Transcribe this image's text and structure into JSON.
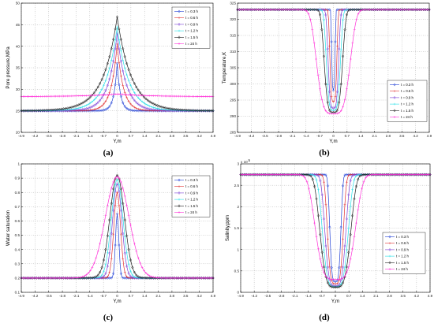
{
  "figure": {
    "captions": [
      "(a)",
      "(b)",
      "(c)",
      "(d)"
    ]
  },
  "chart_data": [
    {
      "type": "line",
      "panel": "a",
      "title": "",
      "xlabel": "Y,m",
      "ylabel": "Pore pressure,MPa",
      "xlim": [
        -4.9,
        4.9
      ],
      "ylim": [
        20,
        50
      ],
      "xticks": [
        "-4.9",
        "-4.2",
        "-3.5",
        "-2.8",
        "-2.1",
        "-1.4",
        "-0.7",
        "0",
        "0.7",
        "1.4",
        "2.1",
        "2.8",
        "3.5",
        "4.2",
        "4.9"
      ],
      "yticks": [
        "20",
        "25",
        "30",
        "35",
        "40",
        "45",
        "50"
      ],
      "grid": true,
      "legend_position": "top-right",
      "profile": {
        "kind": "peak",
        "base": 25,
        "sharp": true
      },
      "series": [
        {
          "name": "t = 0.3 h",
          "color": "#1f3fd6",
          "marker": "diamond",
          "peak": 36.0,
          "width": 0.3
        },
        {
          "name": "t = 0.6 h",
          "color": "#e03030",
          "marker": "plus",
          "peak": 40.5,
          "width": 0.55
        },
        {
          "name": "t = 0.9 h",
          "color": "#7a3fd6",
          "marker": "diamond",
          "peak": 43.0,
          "width": 0.8
        },
        {
          "name": "t = 1.2 h",
          "color": "#27e0e8",
          "marker": "plus",
          "peak": 44.5,
          "width": 1.05
        },
        {
          "name": "t = 1.5 h",
          "color": "#1a1a1a",
          "marker": "diamond",
          "peak": 46.8,
          "width": 1.3
        },
        {
          "name": "t = 24 h",
          "color": "#ff2fd8",
          "marker": "plus",
          "base": 28.3,
          "peak": 28.9,
          "width": 3.0
        }
      ]
    },
    {
      "type": "line",
      "panel": "b",
      "title": "",
      "xlabel": "Y,m",
      "ylabel": "Temperature,K",
      "xlim": [
        -4.9,
        4.9
      ],
      "ylim": [
        285,
        325
      ],
      "xticks": [
        "-4.9",
        "-4.2",
        "-3.5",
        "-2.8",
        "-2.1",
        "-1.4",
        "-0.7",
        "0",
        "0.7",
        "1.4",
        "2.1",
        "2.8",
        "3.5",
        "4.2",
        "4.9"
      ],
      "yticks": [
        "285",
        "290",
        "295",
        "300",
        "305",
        "310",
        "315",
        "320",
        "325"
      ],
      "grid": true,
      "legend_position": "bottom-right",
      "profile": {
        "kind": "trough",
        "base": 323
      },
      "series": [
        {
          "name": "t = 0.3 h",
          "color": "#1f3fd6",
          "marker": "diamond",
          "peak": 298.0,
          "width": 0.1,
          "span": 2.6
        },
        {
          "name": "t = 0.6 h",
          "color": "#e03030",
          "marker": "plus",
          "peak": 294.5,
          "width": 0.2,
          "span": 2.6
        },
        {
          "name": "t = 0.9 h",
          "color": "#7a3fd6",
          "marker": "diamond",
          "peak": 292.5,
          "width": 0.3,
          "span": 2.8
        },
        {
          "name": "t = 1.2 h",
          "color": "#27e0e8",
          "marker": "plus",
          "peak": 291.8,
          "width": 0.4,
          "span": 3.0
        },
        {
          "name": "t = 1.5 h",
          "color": "#1a1a1a",
          "marker": "diamond",
          "peak": 291.2,
          "width": 0.52,
          "span": 3.2
        },
        {
          "name": "t = 24 h",
          "color": "#ff2fd8",
          "marker": "plus",
          "peak": 290.8,
          "width": 0.95,
          "span": 4.9
        }
      ]
    },
    {
      "type": "line",
      "panel": "c",
      "title": "",
      "xlabel": "Y,m",
      "ylabel": "Water saturation",
      "xlim": [
        -4.9,
        4.9
      ],
      "ylim": [
        0.1,
        1.0
      ],
      "xticks": [
        "-4.9",
        "-4.2",
        "-3.5",
        "-2.8",
        "-2.1",
        "-1.4",
        "-0.7",
        "0",
        "0.7",
        "1.4",
        "2.1",
        "2.8",
        "3.5",
        "4.2",
        "4.9"
      ],
      "yticks": [
        "0.1",
        "0.2",
        "0.3",
        "0.4",
        "0.5",
        "0.6",
        "0.7",
        "0.8",
        "0.9",
        "1"
      ],
      "grid": true,
      "legend_position": "top-right",
      "profile": {
        "kind": "peak",
        "base": 0.2
      },
      "series": [
        {
          "name": "t = 0.3 h",
          "color": "#1f3fd6",
          "marker": "diamond",
          "peak": 0.65,
          "width": 0.12
        },
        {
          "name": "t = 0.6 h",
          "color": "#e03030",
          "marker": "plus",
          "peak": 0.8,
          "width": 0.24
        },
        {
          "name": "t = 0.9 h",
          "color": "#7a3fd6",
          "marker": "diamond",
          "peak": 0.86,
          "width": 0.34
        },
        {
          "name": "t = 1.2 h",
          "color": "#27e0e8",
          "marker": "plus",
          "peak": 0.89,
          "width": 0.42
        },
        {
          "name": "t = 1.5 h",
          "color": "#1a1a1a",
          "marker": "diamond",
          "peak": 0.92,
          "width": 0.52
        },
        {
          "name": "t = 24 h",
          "color": "#ff2fd8",
          "marker": "plus",
          "peak": 0.91,
          "width": 0.85
        }
      ]
    },
    {
      "type": "line",
      "panel": "d",
      "title": "",
      "xlabel": "Y,m",
      "ylabel": "Salinity,ppm",
      "yscale_label": "x 10",
      "yscale_exp": "5",
      "xlim": [
        -4.9,
        4.9
      ],
      "ylim": [
        0,
        3.0
      ],
      "xticks": [
        "-4.9",
        "-4.2",
        "-3.5",
        "-2.8",
        "-2.1",
        "-1.4",
        "-0.7",
        "0",
        "0.7",
        "1.4",
        "2.1",
        "2.8",
        "3.5",
        "4.2",
        "4.9"
      ],
      "yticks": [
        "0",
        "0.5",
        "1",
        "1.5",
        "2",
        "2.5",
        "3"
      ],
      "grid": true,
      "legend_position": "bottom-right",
      "profile": {
        "kind": "trough",
        "base": 2.75
      },
      "series": [
        {
          "name": "t = 0.3 h",
          "color": "#1f3fd6",
          "marker": "diamond",
          "peak": 0.25,
          "width": 0.32
        },
        {
          "name": "t = 0.6 h",
          "color": "#e03030",
          "marker": "plus",
          "peak": 0.2,
          "width": 0.46
        },
        {
          "name": "t = 0.9 h",
          "color": "#7a3fd6",
          "marker": "diamond",
          "peak": 0.15,
          "width": 0.6
        },
        {
          "name": "t = 1.2 h",
          "color": "#27e0e8",
          "marker": "plus",
          "peak": 0.13,
          "width": 0.74
        },
        {
          "name": "t = 1.5 h",
          "color": "#1a1a1a",
          "marker": "diamond",
          "peak": 0.12,
          "width": 0.88
        },
        {
          "name": "t = 24 h",
          "color": "#ff2fd8",
          "marker": "plus",
          "peak": 0.3,
          "width": 1.15
        }
      ]
    }
  ]
}
